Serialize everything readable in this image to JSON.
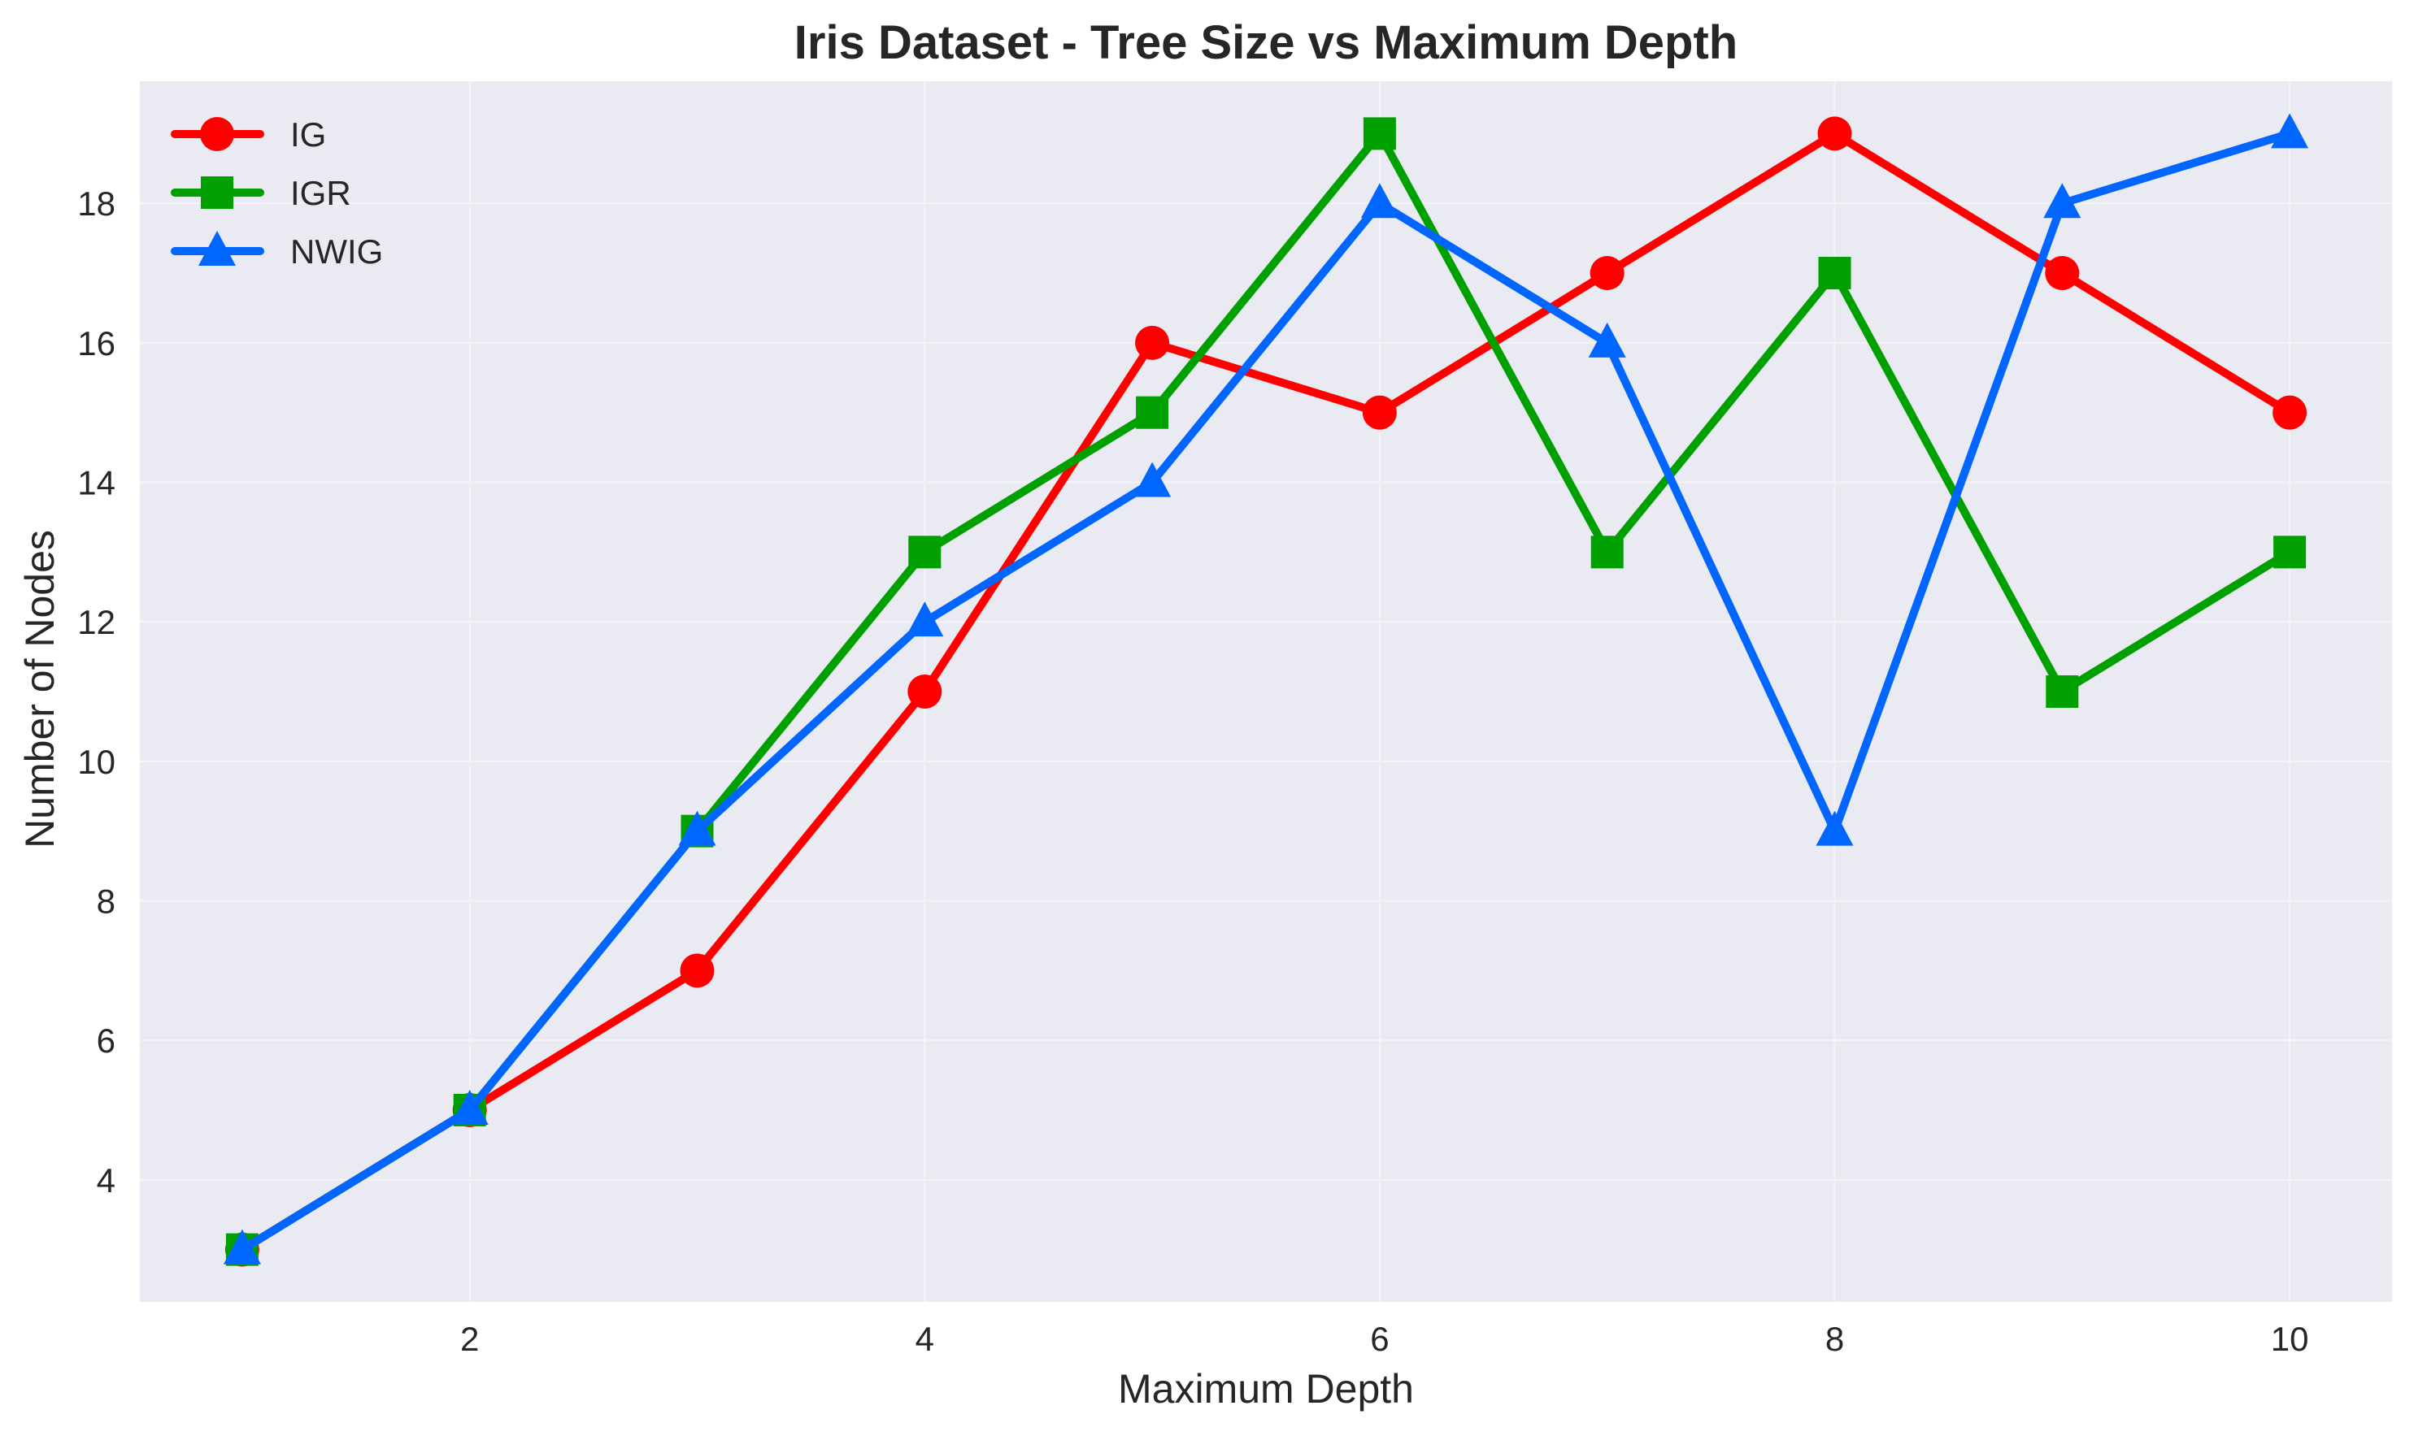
{
  "chart_data": {
    "type": "line",
    "title": "Iris Dataset - Tree Size vs Maximum Depth",
    "xlabel": "Maximum Depth",
    "ylabel": "Number of Nodes",
    "x": [
      1,
      2,
      3,
      4,
      5,
      6,
      7,
      8,
      9,
      10
    ],
    "xlim": [
      0.55,
      10.45
    ],
    "ylim": [
      2.25,
      19.75
    ],
    "xticks": [
      2,
      4,
      6,
      8,
      10
    ],
    "yticks": [
      4,
      6,
      8,
      10,
      12,
      14,
      16,
      18
    ],
    "xtick_labels": [
      "2",
      "4",
      "6",
      "8",
      "10"
    ],
    "ytick_labels": [
      "4",
      "6",
      "8",
      "10",
      "12",
      "14",
      "16",
      "18"
    ],
    "grid": true,
    "legend_position": "top-left",
    "background_color": "#eaeaf2",
    "grid_color": "#f4f4f8",
    "series": [
      {
        "name": "IG",
        "color": "#ff0000",
        "marker": "circle",
        "values": [
          3,
          5,
          7,
          11,
          16,
          15,
          17,
          19,
          17,
          15
        ]
      },
      {
        "name": "IGR",
        "color": "#00a000",
        "marker": "square",
        "values": [
          3,
          5,
          9,
          13,
          15,
          19,
          13,
          17,
          11,
          13
        ]
      },
      {
        "name": "NWIG",
        "color": "#0066ff",
        "marker": "triangle",
        "values": [
          3,
          5,
          9,
          12,
          14,
          18,
          16,
          9,
          18,
          19
        ]
      }
    ]
  }
}
